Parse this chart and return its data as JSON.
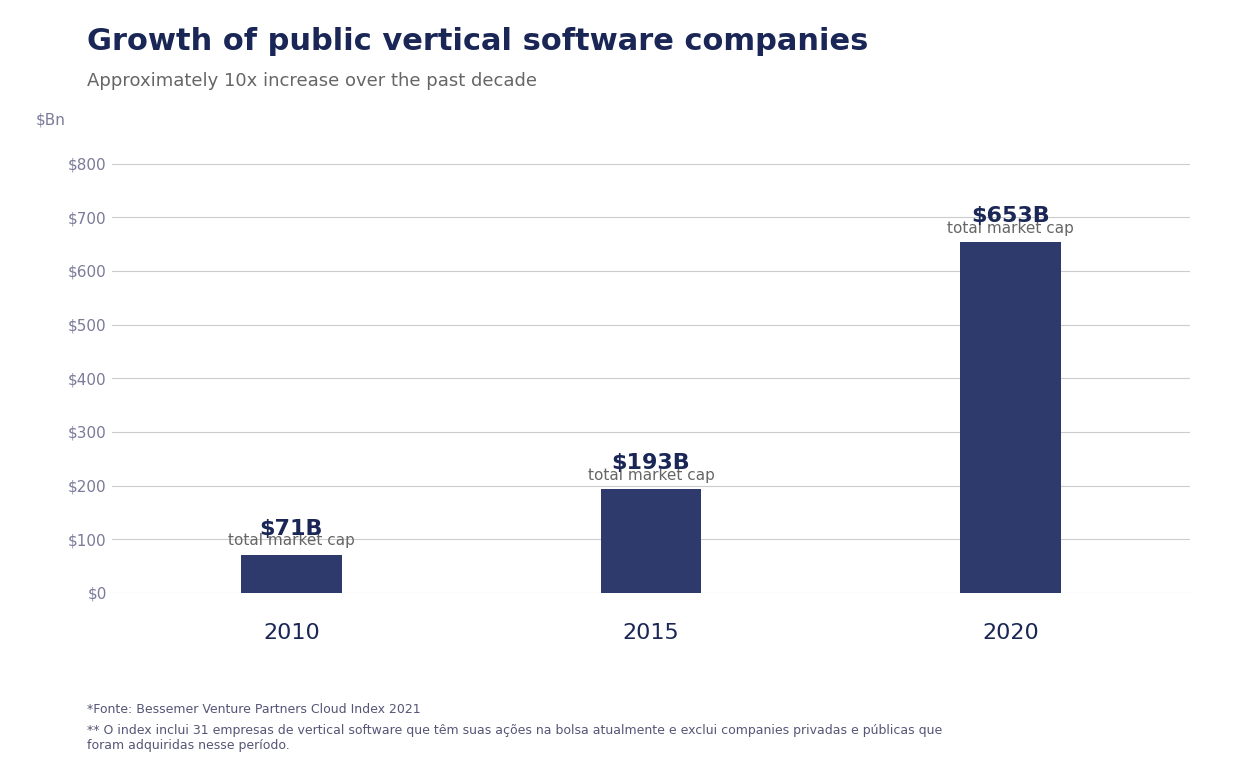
{
  "title": "Growth of public vertical software companies",
  "subtitle": "Approximately 10x increase over the past decade",
  "categories": [
    "2010",
    "2015",
    "2020"
  ],
  "values": [
    71,
    193,
    653
  ],
  "bar_labels": [
    "$71B",
    "$193B",
    "$653B"
  ],
  "bar_sublabels": [
    "total market cap",
    "total market cap",
    "total market cap"
  ],
  "bar_color": "#2d3a6b",
  "background_color": "#ffffff",
  "ylabel": "$Bn",
  "ylim": [
    0,
    850
  ],
  "yticks": [
    0,
    100,
    200,
    300,
    400,
    500,
    600,
    700,
    800
  ],
  "ytick_labels": [
    "$0",
    "$100",
    "$200",
    "$300",
    "$400",
    "$500",
    "$600",
    "$700",
    "$800"
  ],
  "title_color": "#1a2756",
  "subtitle_color": "#666666",
  "bar_label_color": "#1a2756",
  "sub_label_color": "#666666",
  "xlabel_color": "#1a2756",
  "footnote1": "*Fonte: Bessemer Venture Partners Cloud Index 2021",
  "footnote2": "** O index inclui 31 empresas de vertical software que têm suas ações na bolsa atualmente e exclui companies privadas e públicas que\nforam adquiridas nesse período.",
  "title_fontsize": 22,
  "subtitle_fontsize": 13,
  "bar_label_fontsize": 16,
  "sub_label_fontsize": 11,
  "xlabel_fontsize": 16,
  "ylabel_fontsize": 11,
  "ytick_fontsize": 11,
  "footnote_fontsize": 9,
  "bar_width": 0.28,
  "grid_color": "#cccccc",
  "tick_color": "#7a7a9a"
}
